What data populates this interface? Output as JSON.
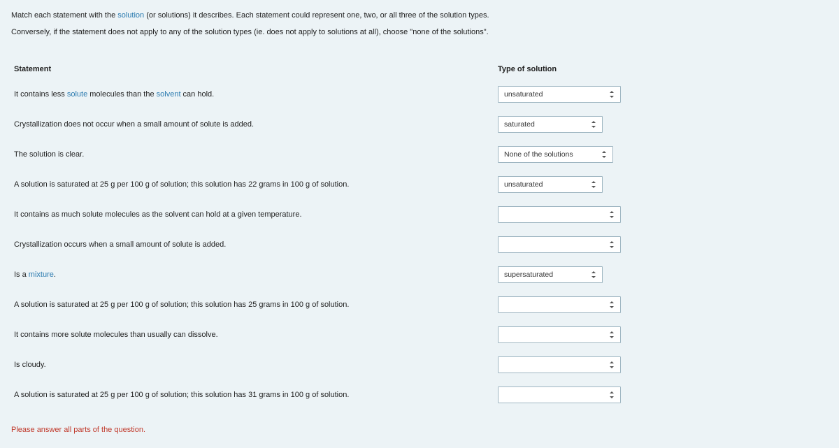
{
  "intro": {
    "line1_parts": [
      "Match each statement with the ",
      "solution",
      " (or solutions) it describes.  Each statement could represent one, two, or all three of the solution types."
    ],
    "line2": "Conversely, if the statement does not apply to any of the solution types (ie. does not apply to solutions at all), choose \"none of the solutions\"."
  },
  "headers": {
    "statement": "Statement",
    "type": "Type of solution"
  },
  "options": {
    "blank": "",
    "unsaturated": "unsaturated",
    "saturated": "saturated",
    "supersaturated": "supersaturated",
    "none": "None of the solutions"
  },
  "rows": [
    {
      "select_width": "w-176",
      "value": "unsaturated",
      "parts": [
        "It contains less ",
        {
          "term": "solute"
        },
        " molecules than the ",
        {
          "term": "solvent"
        },
        " can hold."
      ]
    },
    {
      "select_width": "w-150",
      "value": "saturated",
      "parts": [
        "Crystallization does not occur when a small amount of solute is added."
      ]
    },
    {
      "select_width": "w-165",
      "value": "none",
      "parts": [
        "The solution is clear."
      ]
    },
    {
      "select_width": "w-150",
      "value": "unsaturated",
      "parts": [
        "A solution is saturated at 25 g per 100 g of solution; this solution has 22 grams in 100 g of solution."
      ]
    },
    {
      "select_width": "w-176",
      "value": "blank",
      "parts": [
        "It contains as much solute molecules as the solvent can hold at a given temperature."
      ]
    },
    {
      "select_width": "w-176",
      "value": "blank",
      "parts": [
        "Crystallization occurs when a small amount of solute is added."
      ]
    },
    {
      "select_width": "w-150",
      "value": "supersaturated",
      "parts": [
        "Is a ",
        {
          "term": "mixture"
        },
        "."
      ]
    },
    {
      "select_width": "w-176",
      "value": "blank",
      "parts": [
        "A solution is saturated at 25 g per 100 g of solution; this solution has 25 grams in 100 g of solution."
      ]
    },
    {
      "select_width": "w-176",
      "value": "blank",
      "parts": [
        "It contains more solute molecules than usually can dissolve."
      ]
    },
    {
      "select_width": "w-176",
      "value": "blank",
      "parts": [
        "Is cloudy."
      ]
    },
    {
      "select_width": "w-176",
      "value": "blank",
      "parts": [
        "A solution is saturated at 25 g per 100 g of solution; this solution has 31 grams in 100 g of solution."
      ]
    }
  ],
  "footer": "Please answer all parts of the question."
}
